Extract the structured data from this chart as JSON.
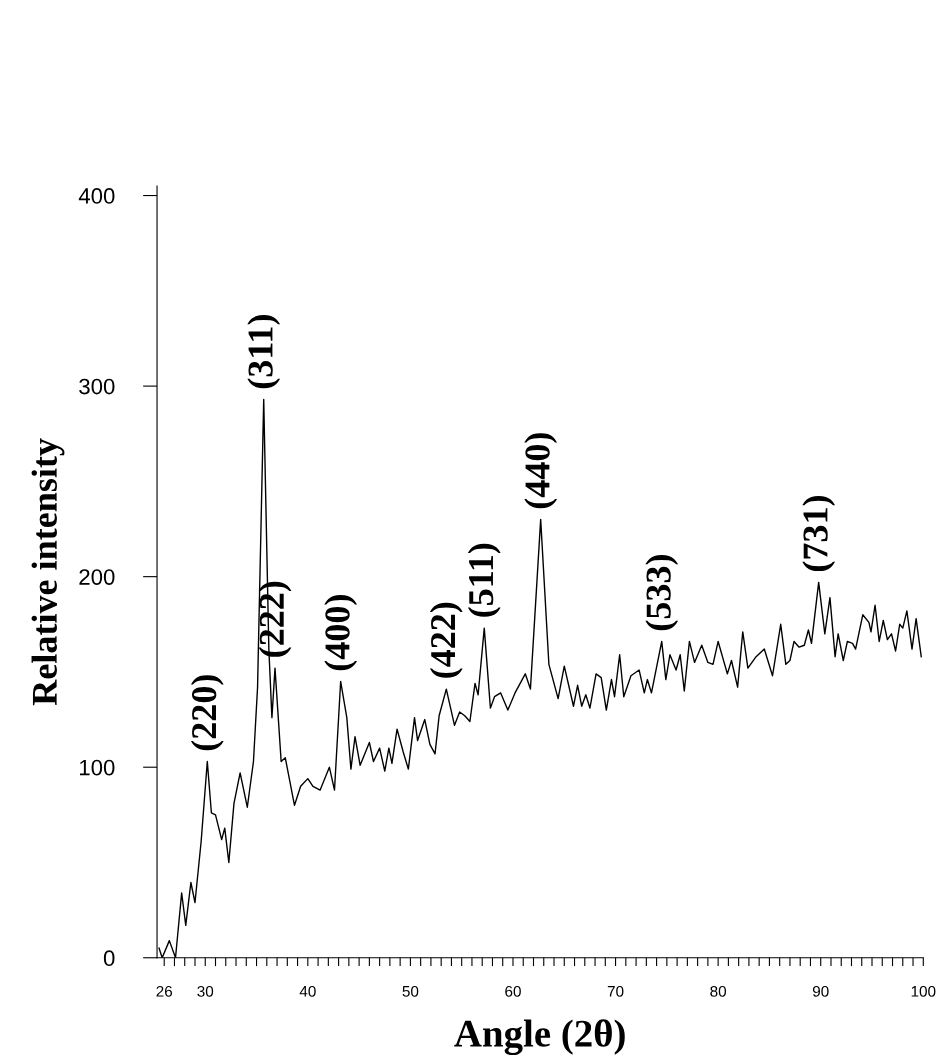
{
  "chart_data": {
    "type": "line",
    "xlabel": "Angle (2θ)",
    "ylabel": "Relative intensity",
    "xlim": [
      25.3,
      100
    ],
    "ylim": [
      0,
      405
    ],
    "xticks": [
      26,
      {
        "value": 27,
        "label": null
      },
      {
        "value": 28,
        "label": null
      },
      {
        "value": 29,
        "label": null
      },
      30,
      {
        "value": 31,
        "label": null
      },
      {
        "value": 32,
        "label": null
      },
      {
        "value": 33,
        "label": null
      },
      {
        "value": 34,
        "label": null
      },
      {
        "value": 35,
        "label": null
      },
      {
        "value": 36,
        "label": null
      },
      {
        "value": 37,
        "label": null
      },
      {
        "value": 38,
        "label": null
      },
      {
        "value": 39,
        "label": null
      },
      40,
      {
        "value": 41,
        "label": null
      },
      {
        "value": 42,
        "label": null
      },
      {
        "value": 43,
        "label": null
      },
      {
        "value": 44,
        "label": null
      },
      {
        "value": 45,
        "label": null
      },
      {
        "value": 46,
        "label": null
      },
      {
        "value": 47,
        "label": null
      },
      {
        "value": 48,
        "label": null
      },
      {
        "value": 49,
        "label": null
      },
      50,
      {
        "value": 51,
        "label": null
      },
      {
        "value": 52,
        "label": null
      },
      {
        "value": 53,
        "label": null
      },
      {
        "value": 54,
        "label": null
      },
      {
        "value": 55,
        "label": null
      },
      {
        "value": 56,
        "label": null
      },
      {
        "value": 57,
        "label": null
      },
      {
        "value": 58,
        "label": null
      },
      {
        "value": 59,
        "label": null
      },
      60,
      {
        "value": 61,
        "label": null
      },
      {
        "value": 62,
        "label": null
      },
      {
        "value": 63,
        "label": null
      },
      {
        "value": 64,
        "label": null
      },
      {
        "value": 65,
        "label": null
      },
      {
        "value": 66,
        "label": null
      },
      {
        "value": 67,
        "label": null
      },
      {
        "value": 68,
        "label": null
      },
      {
        "value": 69,
        "label": null
      },
      70,
      {
        "value": 71,
        "label": null
      },
      {
        "value": 72,
        "label": null
      },
      {
        "value": 73,
        "label": null
      },
      {
        "value": 74,
        "label": null
      },
      {
        "value": 75,
        "label": null
      },
      {
        "value": 76,
        "label": null
      },
      {
        "value": 77,
        "label": null
      },
      {
        "value": 78,
        "label": null
      },
      {
        "value": 79,
        "label": null
      },
      80,
      {
        "value": 81,
        "label": null
      },
      {
        "value": 82,
        "label": null
      },
      {
        "value": 83,
        "label": null
      },
      {
        "value": 84,
        "label": null
      },
      {
        "value": 85,
        "label": null
      },
      {
        "value": 86,
        "label": null
      },
      {
        "value": 87,
        "label": null
      },
      {
        "value": 88,
        "label": null
      },
      {
        "value": 89,
        "label": null
      },
      90,
      {
        "value": 91,
        "label": null
      },
      {
        "value": 92,
        "label": null
      },
      {
        "value": 93,
        "label": null
      },
      {
        "value": 94,
        "label": null
      },
      {
        "value": 95,
        "label": null
      },
      {
        "value": 96,
        "label": null
      },
      {
        "value": 97,
        "label": null
      },
      {
        "value": 98,
        "label": null
      },
      {
        "value": 99,
        "label": null
      },
      100
    ],
    "yticks": [
      0,
      100,
      200,
      300,
      400
    ],
    "grid": false,
    "marker": "none",
    "line_style": "solid",
    "series": [
      {
        "color": "#000000",
        "x": [
          25.5,
          25.8,
          26.5,
          27.1,
          27.7,
          28.1,
          28.6,
          29.0,
          29.6,
          30.2,
          30.6,
          31.0,
          31.6,
          31.9,
          32.3,
          32.8,
          33.4,
          34.1,
          34.7,
          35.1,
          35.7,
          36.2,
          36.5,
          36.8,
          37.4,
          37.8,
          38.7,
          39.3,
          40.0,
          40.5,
          41.2,
          42.1,
          42.6,
          43.2,
          43.8,
          44.2,
          44.6,
          45.1,
          46.0,
          46.4,
          47.0,
          47.5,
          47.9,
          48.2,
          48.7,
          49.3,
          49.8,
          50.4,
          50.7,
          51.4,
          51.9,
          52.4,
          52.8,
          53.5,
          54.3,
          54.8,
          55.3,
          55.8,
          56.3,
          56.6,
          57.2,
          57.8,
          58.2,
          58.8,
          59.5,
          60.2,
          61.2,
          61.7,
          62.7,
          63.5,
          64.4,
          65.0,
          65.9,
          66.3,
          66.7,
          67.1,
          67.5,
          68.1,
          68.6,
          69.1,
          69.6,
          69.9,
          70.4,
          70.8,
          71.5,
          72.3,
          72.8,
          73.1,
          73.5,
          74.5,
          74.9,
          75.3,
          75.9,
          76.3,
          76.7,
          77.2,
          77.7,
          78.4,
          79.0,
          79.5,
          80.0,
          80.9,
          81.3,
          81.9,
          82.4,
          82.9,
          83.7,
          84.5,
          85.3,
          86.1,
          86.6,
          87.0,
          87.4,
          87.9,
          88.4,
          88.8,
          89.1,
          89.8,
          90.4,
          90.9,
          91.4,
          91.7,
          92.2,
          92.6,
          93.1,
          93.4,
          94.1,
          94.7,
          94.9,
          95.3,
          95.7,
          96.1,
          96.5,
          96.9,
          97.3,
          97.7,
          98.0,
          98.4,
          98.9,
          99.3,
          99.8
        ],
        "values": [
          5,
          0,
          9,
          0,
          34,
          17,
          39.5,
          29,
          61,
          103,
          76,
          75,
          62,
          68,
          50,
          81,
          97,
          79,
          103,
          142,
          293,
          162,
          126,
          152,
          103,
          105,
          80,
          90,
          94,
          90,
          88,
          100,
          88,
          145,
          126,
          99,
          116,
          101,
          113,
          103,
          110,
          98,
          110,
          102,
          120,
          108,
          99,
          126,
          114,
          125,
          112,
          107,
          127,
          141,
          122,
          129,
          127,
          124,
          144,
          138,
          173,
          131,
          137,
          139,
          130,
          139,
          149,
          141,
          230,
          154,
          136,
          153,
          132,
          143,
          132,
          138,
          131,
          149,
          147,
          130,
          146,
          137,
          159,
          137,
          148,
          151,
          139,
          146,
          139,
          166,
          146,
          159,
          151,
          159,
          140,
          166,
          155,
          164,
          155,
          154,
          166,
          149,
          156,
          142,
          171,
          152,
          158,
          162,
          148,
          175,
          154,
          156,
          166,
          163,
          164,
          172,
          165,
          197,
          170,
          189,
          158,
          170,
          156,
          166,
          165,
          162,
          180,
          176,
          171,
          185,
          166,
          177,
          167,
          170,
          161,
          175,
          173,
          182,
          162,
          178,
          158
        ]
      }
    ],
    "annotations": [
      {
        "text": "(220)",
        "x": 30.2,
        "y": 103
      },
      {
        "text": "(311)",
        "x": 35.7,
        "y": 293
      },
      {
        "text": "(222)",
        "x": 36.8,
        "y": 152
      },
      {
        "text": "(400)",
        "x": 43.2,
        "y": 145
      },
      {
        "text": "(422)",
        "x": 53.5,
        "y": 141
      },
      {
        "text": "(511)",
        "x": 57.2,
        "y": 173
      },
      {
        "text": "(440)",
        "x": 62.7,
        "y": 230
      },
      {
        "text": "(533)",
        "x": 74.5,
        "y": 166
      },
      {
        "text": "(731)",
        "x": 89.8,
        "y": 197
      }
    ]
  }
}
